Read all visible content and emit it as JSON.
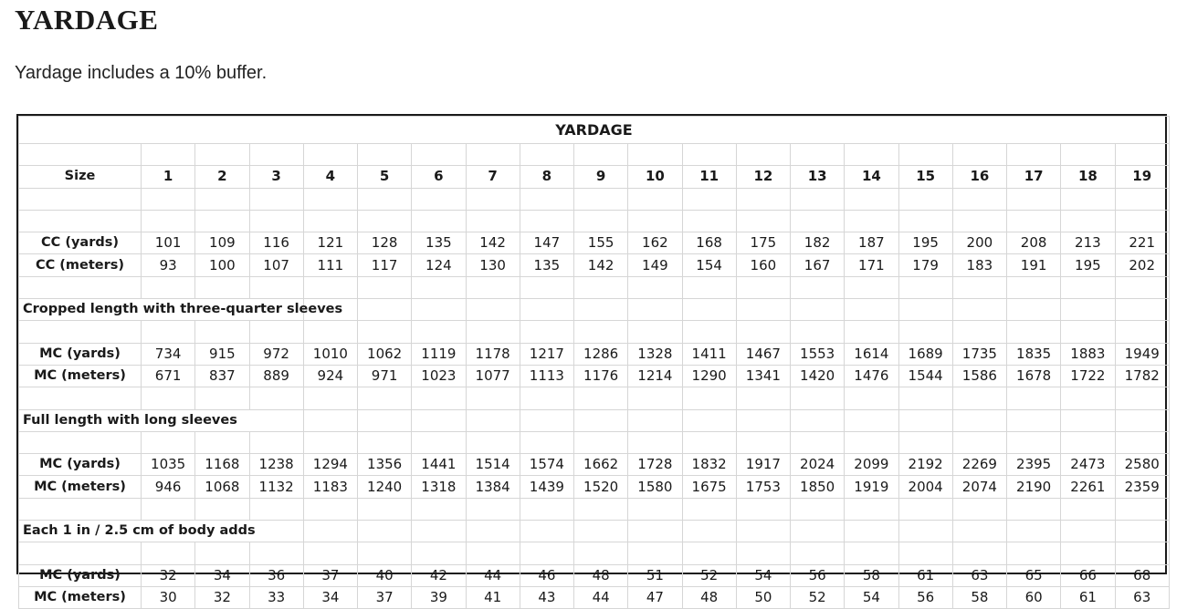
{
  "heading": "YARDAGE",
  "subtitle": "Yardage includes a 10% buffer.",
  "table": {
    "title": "YARDAGE",
    "size_label": "Size",
    "sizes": [
      "1",
      "2",
      "3",
      "4",
      "5",
      "6",
      "7",
      "8",
      "9",
      "10",
      "11",
      "12",
      "13",
      "14",
      "15",
      "16",
      "17",
      "18",
      "19"
    ],
    "cc": [
      {
        "label": "CC (yards)",
        "values": [
          "101",
          "109",
          "116",
          "121",
          "128",
          "135",
          "142",
          "147",
          "155",
          "162",
          "168",
          "175",
          "182",
          "187",
          "195",
          "200",
          "208",
          "213",
          "221"
        ]
      },
      {
        "label": "CC (meters)",
        "values": [
          "93",
          "100",
          "107",
          "111",
          "117",
          "124",
          "130",
          "135",
          "142",
          "149",
          "154",
          "160",
          "167",
          "171",
          "179",
          "183",
          "191",
          "195",
          "202"
        ]
      }
    ],
    "sections": [
      {
        "title": "Cropped length with three-quarter sleeves",
        "rows": [
          {
            "label": "MC (yards)",
            "values": [
              "734",
              "915",
              "972",
              "1010",
              "1062",
              "1119",
              "1178",
              "1217",
              "1286",
              "1328",
              "1411",
              "1467",
              "1553",
              "1614",
              "1689",
              "1735",
              "1835",
              "1883",
              "1949"
            ]
          },
          {
            "label": "MC (meters)",
            "values": [
              "671",
              "837",
              "889",
              "924",
              "971",
              "1023",
              "1077",
              "1113",
              "1176",
              "1214",
              "1290",
              "1341",
              "1420",
              "1476",
              "1544",
              "1586",
              "1678",
              "1722",
              "1782"
            ]
          }
        ]
      },
      {
        "title": "Full length with long sleeves",
        "rows": [
          {
            "label": "MC (yards)",
            "values": [
              "1035",
              "1168",
              "1238",
              "1294",
              "1356",
              "1441",
              "1514",
              "1574",
              "1662",
              "1728",
              "1832",
              "1917",
              "2024",
              "2099",
              "2192",
              "2269",
              "2395",
              "2473",
              "2580"
            ]
          },
          {
            "label": "MC (meters)",
            "values": [
              "946",
              "1068",
              "1132",
              "1183",
              "1240",
              "1318",
              "1384",
              "1439",
              "1520",
              "1580",
              "1675",
              "1753",
              "1850",
              "1919",
              "2004",
              "2074",
              "2190",
              "2261",
              "2359"
            ]
          }
        ]
      },
      {
        "title": "Each 1 in / 2.5 cm of body adds",
        "rows": [
          {
            "label": "MC (yards)",
            "values": [
              "32",
              "34",
              "36",
              "37",
              "40",
              "42",
              "44",
              "46",
              "48",
              "51",
              "52",
              "54",
              "56",
              "58",
              "61",
              "63",
              "65",
              "66",
              "68"
            ]
          },
          {
            "label": "MC (meters)",
            "values": [
              "30",
              "32",
              "33",
              "34",
              "37",
              "39",
              "41",
              "43",
              "44",
              "47",
              "48",
              "50",
              "52",
              "54",
              "56",
              "58",
              "60",
              "61",
              "63"
            ]
          }
        ]
      }
    ]
  }
}
